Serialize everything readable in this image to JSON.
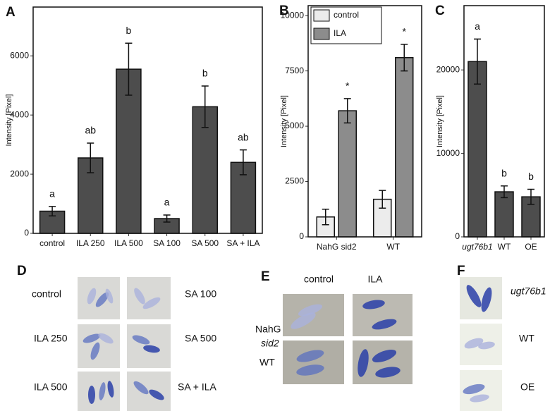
{
  "chart_data": [
    {
      "type": "bar",
      "panel": "A",
      "y_label": "Intensity [Pixel]",
      "categories": [
        "control",
        "ILA 250",
        "ILA 500",
        "SA 100",
        "SA 500",
        "SA + ILA"
      ],
      "values": [
        750,
        2550,
        5550,
        500,
        4280,
        2400
      ],
      "errors": [
        160,
        500,
        880,
        120,
        700,
        420
      ],
      "annotations": [
        "a",
        "ab",
        "b",
        "a",
        "b",
        "ab"
      ],
      "color": "#4d4d4d",
      "ylim": [
        0,
        7650
      ],
      "yticks": [
        0,
        2000,
        4000,
        6000
      ]
    },
    {
      "type": "bar",
      "panel": "B",
      "y_label": "Intensity [Pixel]",
      "categories": [
        "NahG sid2",
        "WT"
      ],
      "series": [
        {
          "name": "control",
          "color": "#ececec",
          "values": [
            900,
            1700
          ],
          "errors": [
            350,
            400
          ]
        },
        {
          "name": "ILA",
          "color": "#8c8c8c",
          "values": [
            5700,
            8100
          ],
          "errors": [
            550,
            600
          ],
          "annotations": [
            "*",
            "*"
          ]
        }
      ],
      "ylim": [
        0,
        10450
      ],
      "yticks": [
        0,
        2500,
        5000,
        7500,
        10000
      ],
      "legend": "top-left"
    },
    {
      "type": "bar",
      "panel": "C",
      "y_label": "Intensity [Pixel]",
      "categories": [
        "ugt76b1",
        "WT",
        "OE"
      ],
      "values": [
        21000,
        5400,
        4800
      ],
      "errors": [
        2700,
        700,
        900
      ],
      "annotations": [
        "a",
        "b",
        "b"
      ],
      "color": "#4d4d4d",
      "ylim": [
        0,
        27700
      ],
      "yticks": [
        0,
        10000,
        20000
      ]
    }
  ],
  "photo_panels": [
    {
      "panel": "D",
      "labels": [
        "control",
        "SA 100",
        "ILA 250",
        "SA 500",
        "ILA 500",
        "SA + ILA"
      ]
    },
    {
      "panel": "E",
      "columns": [
        "control",
        "ILA"
      ],
      "rows": [
        [
          "NahG",
          "sid2"
        ],
        [
          "WT"
        ]
      ]
    },
    {
      "panel": "F",
      "labels": [
        "ugt76b1",
        "WT",
        "OE"
      ]
    }
  ]
}
